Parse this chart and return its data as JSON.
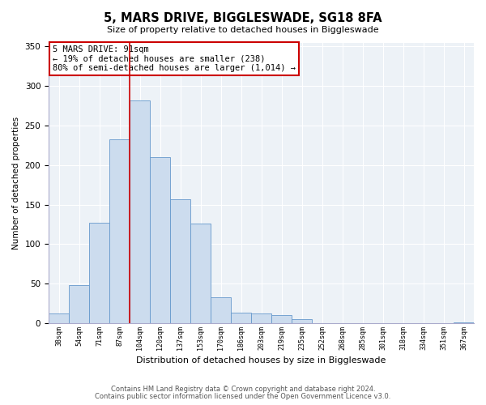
{
  "title": "5, MARS DRIVE, BIGGLESWADE, SG18 8FA",
  "subtitle": "Size of property relative to detached houses in Biggleswade",
  "xlabel": "Distribution of detached houses by size in Biggleswade",
  "ylabel": "Number of detached properties",
  "categories": [
    "38sqm",
    "54sqm",
    "71sqm",
    "87sqm",
    "104sqm",
    "120sqm",
    "137sqm",
    "153sqm",
    "170sqm",
    "186sqm",
    "203sqm",
    "219sqm",
    "235sqm",
    "252sqm",
    "268sqm",
    "285sqm",
    "301sqm",
    "318sqm",
    "334sqm",
    "351sqm",
    "367sqm"
  ],
  "values": [
    12,
    48,
    127,
    233,
    282,
    210,
    157,
    126,
    33,
    13,
    12,
    10,
    5,
    0,
    0,
    0,
    0,
    0,
    0,
    0,
    1
  ],
  "bar_color": "#ccdcee",
  "bar_edge_color": "#6699cc",
  "vline_x": 3.5,
  "vline_color": "#cc0000",
  "annotation_line1": "5 MARS DRIVE: 91sqm",
  "annotation_line2": "← 19% of detached houses are smaller (238)",
  "annotation_line3": "80% of semi-detached houses are larger (1,014) →",
  "annotation_box_color": "#ffffff",
  "annotation_box_edge_color": "#cc0000",
  "ylim": [
    0,
    355
  ],
  "yticks": [
    0,
    50,
    100,
    150,
    200,
    250,
    300,
    350
  ],
  "footer_line1": "Contains HM Land Registry data © Crown copyright and database right 2024.",
  "footer_line2": "Contains public sector information licensed under the Open Government Licence v3.0.",
  "bg_color": "#edf2f7",
  "grid_color": "#ffffff",
  "spine_color": "#aaaacc"
}
